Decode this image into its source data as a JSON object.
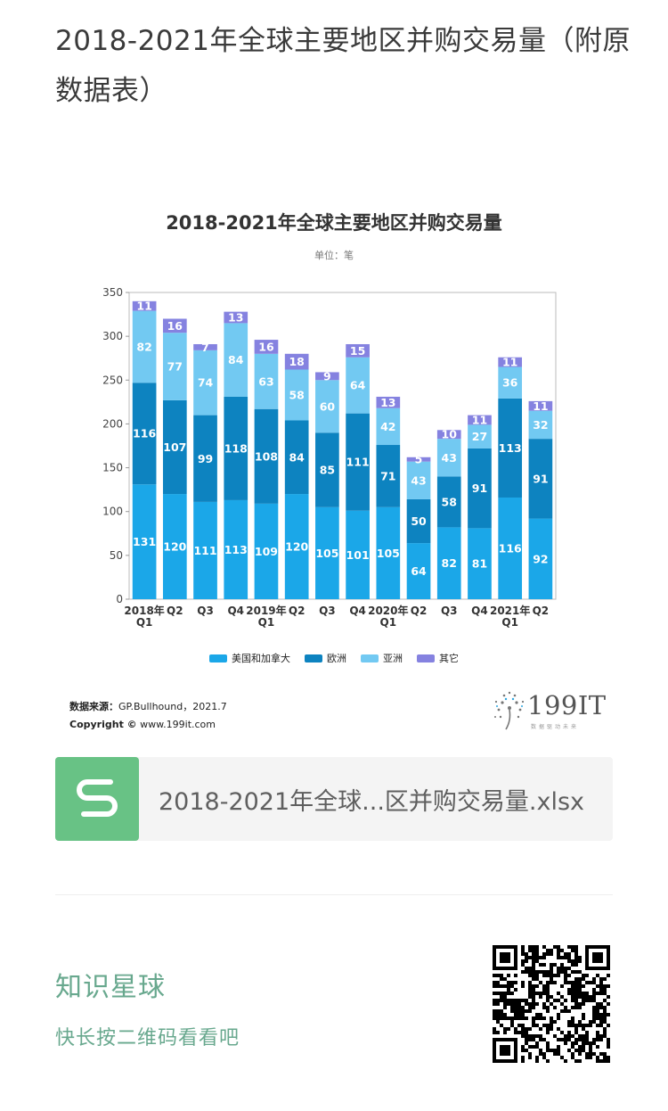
{
  "post": {
    "title": "2018-2021年全球主要地区并购交易量（附原数据表）"
  },
  "chart_data": {
    "type": "bar",
    "stacked": true,
    "title": "2018-2021年全球主要地区并购交易量",
    "subtitle": "单位：笔",
    "categories": [
      [
        "2018年",
        "Q1"
      ],
      [
        "Q2"
      ],
      [
        "Q3"
      ],
      [
        "Q4"
      ],
      [
        "2019年",
        "Q1"
      ],
      [
        "Q2"
      ],
      [
        "Q3"
      ],
      [
        "Q4"
      ],
      [
        "2020年",
        "Q1"
      ],
      [
        "Q2"
      ],
      [
        "Q3"
      ],
      [
        "Q4"
      ],
      [
        "2021年",
        "Q1"
      ],
      [
        "Q2"
      ]
    ],
    "series": [
      {
        "name": "美国和加拿大",
        "color": "#1ba7e8",
        "values": [
          131,
          120,
          111,
          113,
          109,
          120,
          105,
          101,
          105,
          64,
          82,
          81,
          116,
          92
        ]
      },
      {
        "name": "欧洲",
        "color": "#0d83c0",
        "values": [
          116,
          107,
          99,
          118,
          108,
          84,
          85,
          111,
          71,
          50,
          58,
          91,
          113,
          91
        ]
      },
      {
        "name": "亚洲",
        "color": "#72c9f2",
        "values": [
          82,
          77,
          74,
          84,
          63,
          58,
          60,
          64,
          42,
          43,
          43,
          27,
          36,
          32
        ]
      },
      {
        "name": "其它",
        "color": "#8582e0",
        "values": [
          11,
          16,
          7,
          13,
          16,
          18,
          9,
          15,
          13,
          5,
          10,
          11,
          11,
          11
        ]
      }
    ],
    "ylim": [
      0,
      350
    ],
    "yticks": [
      0,
      50,
      100,
      150,
      200,
      250,
      300,
      350
    ],
    "legend_position": "bottom",
    "grid": false
  },
  "source": {
    "label": "数据来源：",
    "value": "GP.Bullhound，2021.7",
    "copyright_label": "Copyright ©",
    "copyright_value": "www.199it.com"
  },
  "brand": {
    "logo_text": "199IT",
    "tagline": "数据驱动未来"
  },
  "file": {
    "name": "2018-2021年全球...区并购交易量.xlsx"
  },
  "planet": {
    "title": "知识星球",
    "subtitle": "快长按二维码看看吧"
  }
}
